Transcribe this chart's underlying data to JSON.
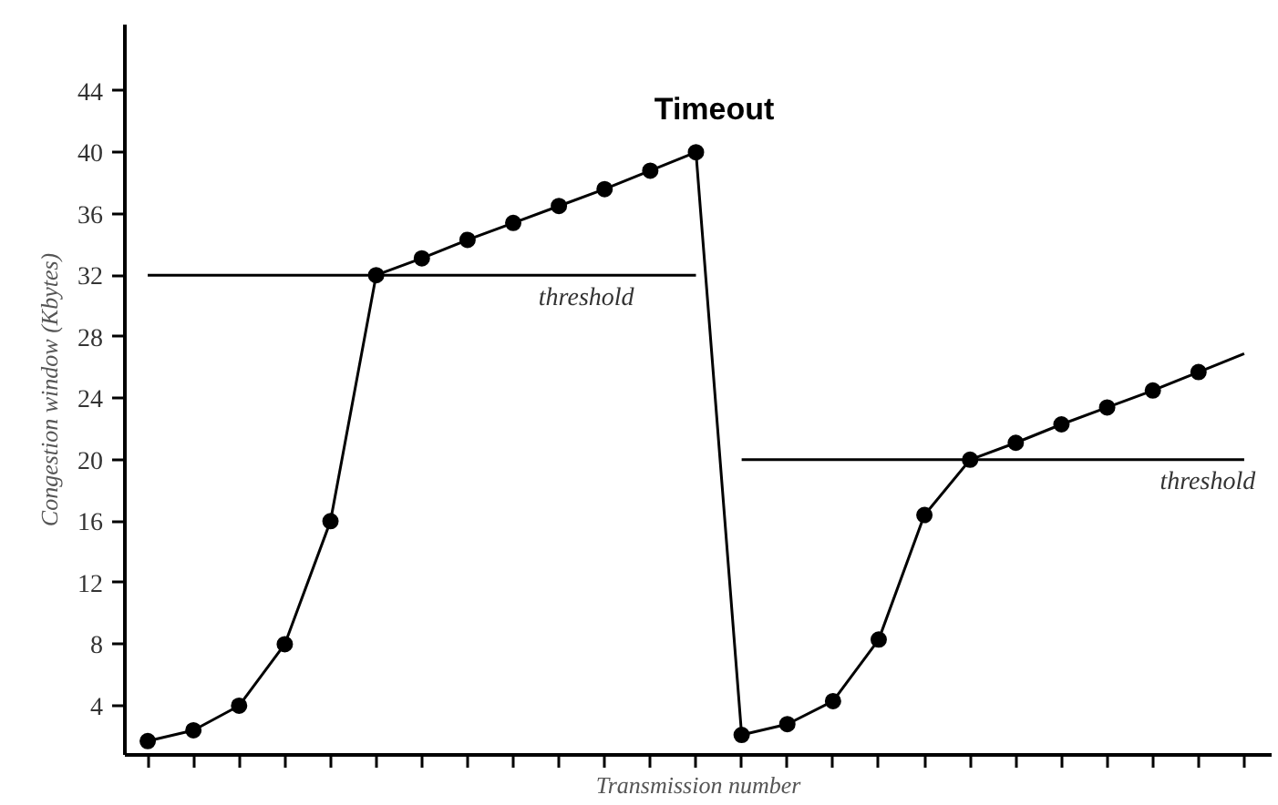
{
  "chart_data": {
    "type": "line",
    "xlabel": "Transmission number",
    "ylabel": "Congestion window (Kbytes)",
    "categories": [
      null,
      null,
      null,
      null,
      null,
      null,
      null,
      null,
      null,
      null,
      null,
      null,
      null,
      null,
      null,
      null,
      null,
      null,
      null,
      null,
      null,
      null,
      null,
      null,
      null
    ],
    "ylim": [
      0.8,
      48.3
    ],
    "yticks": [
      4,
      8,
      12,
      16,
      20,
      24,
      28,
      32,
      36,
      40,
      44
    ],
    "grid": false,
    "marker": "circle",
    "line_style": "solid",
    "series": [
      {
        "color": "#000000",
        "values": [
          1.7,
          2.4,
          4,
          8,
          16,
          32,
          33.1,
          34.3,
          35.4,
          36.5,
          37.6,
          38.8,
          40,
          2.1,
          2.8,
          4.3,
          8.3,
          16.4,
          20,
          21.1,
          22.3,
          23.4,
          24.5,
          25.7,
          null
        ]
      },
      {
        "color": "#000000",
        "marker": "none",
        "values": [
          null,
          null,
          null,
          null,
          null,
          null,
          null,
          null,
          null,
          null,
          null,
          null,
          null,
          null,
          null,
          null,
          null,
          null,
          null,
          null,
          null,
          null,
          null,
          25.7,
          26.9
        ]
      },
      {
        "color": "#000000",
        "marker": "none",
        "values": [
          32,
          32,
          32,
          32,
          32,
          32,
          32,
          32,
          32,
          32,
          32,
          32,
          32,
          null,
          null,
          null,
          null,
          null,
          null,
          null,
          null,
          null,
          null,
          null,
          null
        ]
      },
      {
        "color": "#000000",
        "marker": "none",
        "values": [
          null,
          null,
          null,
          null,
          null,
          null,
          null,
          null,
          null,
          null,
          null,
          null,
          null,
          20,
          20,
          20,
          20,
          20,
          20,
          20,
          20,
          20,
          20,
          20,
          20
        ]
      }
    ],
    "annotations": [
      "Timeout",
      "threshold",
      "threshold"
    ]
  }
}
